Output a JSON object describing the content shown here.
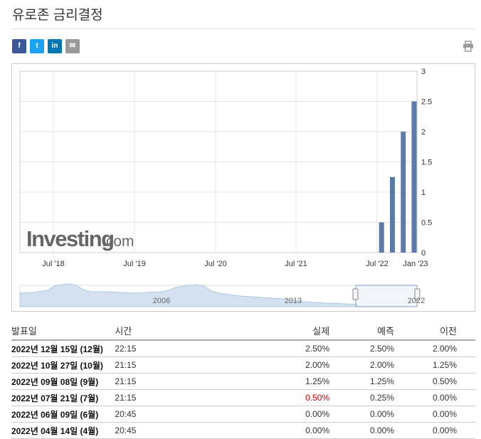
{
  "page": {
    "title": "유로존 금리결정"
  },
  "share": {
    "facebook": "f",
    "twitter": "t",
    "linkedin": "in",
    "email": "✉"
  },
  "watermark": {
    "brand": "Investing",
    "suffix": ".com"
  },
  "chart_data": {
    "type": "bar",
    "x_ticks": [
      "Jul '18",
      "Jul '19",
      "Jul '20",
      "Jul '21",
      "Jul '22",
      "Jan '23"
    ],
    "y_ticks": [
      "0",
      "0.5",
      "1",
      "1.5",
      "2",
      "2.5",
      "3"
    ],
    "ylim": [
      0,
      3
    ],
    "x": [
      "2022-07-21",
      "2022-09-08",
      "2022-10-27",
      "2022-12-15"
    ],
    "values": [
      0.5,
      1.25,
      2.0,
      2.5
    ],
    "grid": true,
    "navigator_labels": [
      "2006",
      "2013",
      "2022"
    ],
    "colors": {
      "bar": "#5b7ba8",
      "navigator": "#d3e1f0"
    }
  },
  "table": {
    "headers": {
      "date": "발표일",
      "time": "시간",
      "actual": "실제",
      "forecast": "예측",
      "previous": "이전"
    },
    "rows": [
      {
        "date": "2022년 12월 15일 (12월)",
        "time": "22:15",
        "actual": "2.50%",
        "forecast": "2.50%",
        "previous": "2.00%",
        "actual_neg": false
      },
      {
        "date": "2022년 10월 27일 (10월)",
        "time": "21:15",
        "actual": "2.00%",
        "forecast": "2.00%",
        "previous": "1.25%",
        "actual_neg": false
      },
      {
        "date": "2022년 09월 08일 (9월)",
        "time": "21:15",
        "actual": "1.25%",
        "forecast": "1.25%",
        "previous": "0.50%",
        "actual_neg": false
      },
      {
        "date": "2022년 07월 21일 (7월)",
        "time": "21:15",
        "actual": "0.50%",
        "forecast": "0.25%",
        "previous": "0.00%",
        "actual_neg": true
      },
      {
        "date": "2022년 06월 09일 (6월)",
        "time": "20:45",
        "actual": "0.00%",
        "forecast": "0.00%",
        "previous": "0.00%",
        "actual_neg": false
      },
      {
        "date": "2022년 04월 14일 (4월)",
        "time": "20:45",
        "actual": "0.00%",
        "forecast": "0.00%",
        "previous": "0.00%",
        "actual_neg": false
      }
    ]
  }
}
